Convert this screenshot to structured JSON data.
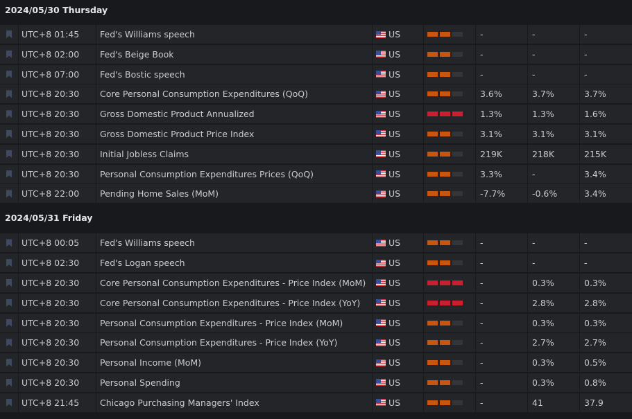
{
  "colors": {
    "medium": "#c85610",
    "high": "#c9202f",
    "off": "#333538"
  },
  "days": [
    {
      "title": "2024/05/30 Thursday",
      "events": [
        {
          "time": "UTC+8 01:45",
          "event": "Fed's Williams speech",
          "country": "US",
          "importance": 2,
          "actual": "-",
          "forecast": "-",
          "previous": "-"
        },
        {
          "time": "UTC+8 02:00",
          "event": "Fed's Beige Book",
          "country": "US",
          "importance": 2,
          "actual": "-",
          "forecast": "-",
          "previous": "-"
        },
        {
          "time": "UTC+8 07:00",
          "event": "Fed's Bostic speech",
          "country": "US",
          "importance": 2,
          "actual": "-",
          "forecast": "-",
          "previous": "-"
        },
        {
          "time": "UTC+8 20:30",
          "event": "Core Personal Consumption Expenditures (QoQ)",
          "country": "US",
          "importance": 2,
          "actual": "3.6%",
          "forecast": "3.7%",
          "previous": "3.7%"
        },
        {
          "time": "UTC+8 20:30",
          "event": "Gross Domestic Product Annualized",
          "country": "US",
          "importance": 3,
          "actual": "1.3%",
          "forecast": "1.3%",
          "previous": "1.6%"
        },
        {
          "time": "UTC+8 20:30",
          "event": "Gross Domestic Product Price Index",
          "country": "US",
          "importance": 2,
          "actual": "3.1%",
          "forecast": "3.1%",
          "previous": "3.1%"
        },
        {
          "time": "UTC+8 20:30",
          "event": "Initial Jobless Claims",
          "country": "US",
          "importance": 2,
          "actual": "219K",
          "forecast": "218K",
          "previous": "215K"
        },
        {
          "time": "UTC+8 20:30",
          "event": "Personal Consumption Expenditures Prices (QoQ)",
          "country": "US",
          "importance": 2,
          "actual": "3.3%",
          "forecast": "-",
          "previous": "3.4%"
        },
        {
          "time": "UTC+8 22:00",
          "event": "Pending Home Sales (MoM)",
          "country": "US",
          "importance": 2,
          "actual": "-7.7%",
          "forecast": "-0.6%",
          "previous": "3.4%"
        }
      ]
    },
    {
      "title": "2024/05/31 Friday",
      "events": [
        {
          "time": "UTC+8 00:05",
          "event": "Fed's Williams speech",
          "country": "US",
          "importance": 2,
          "actual": "-",
          "forecast": "-",
          "previous": "-"
        },
        {
          "time": "UTC+8 02:30",
          "event": "Fed's Logan speech",
          "country": "US",
          "importance": 2,
          "actual": "-",
          "forecast": "-",
          "previous": "-"
        },
        {
          "time": "UTC+8 20:30",
          "event": "Core Personal Consumption Expenditures - Price Index (MoM)",
          "country": "US",
          "importance": 3,
          "actual": "-",
          "forecast": "0.3%",
          "previous": "0.3%"
        },
        {
          "time": "UTC+8 20:30",
          "event": "Core Personal Consumption Expenditures - Price Index (YoY)",
          "country": "US",
          "importance": 3,
          "actual": "-",
          "forecast": "2.8%",
          "previous": "2.8%"
        },
        {
          "time": "UTC+8 20:30",
          "event": "Personal Consumption Expenditures - Price Index (MoM)",
          "country": "US",
          "importance": 2,
          "actual": "-",
          "forecast": "0.3%",
          "previous": "0.3%"
        },
        {
          "time": "UTC+8 20:30",
          "event": "Personal Consumption Expenditures - Price Index (YoY)",
          "country": "US",
          "importance": 2,
          "actual": "-",
          "forecast": "2.7%",
          "previous": "2.7%"
        },
        {
          "time": "UTC+8 20:30",
          "event": "Personal Income (MoM)",
          "country": "US",
          "importance": 2,
          "actual": "-",
          "forecast": "0.3%",
          "previous": "0.5%"
        },
        {
          "time": "UTC+8 20:30",
          "event": "Personal Spending",
          "country": "US",
          "importance": 2,
          "actual": "-",
          "forecast": "0.3%",
          "previous": "0.8%"
        },
        {
          "time": "UTC+8 21:45",
          "event": "Chicago Purchasing Managers' Index",
          "country": "US",
          "importance": 2,
          "actual": "-",
          "forecast": "41",
          "previous": "37.9"
        }
      ]
    }
  ]
}
